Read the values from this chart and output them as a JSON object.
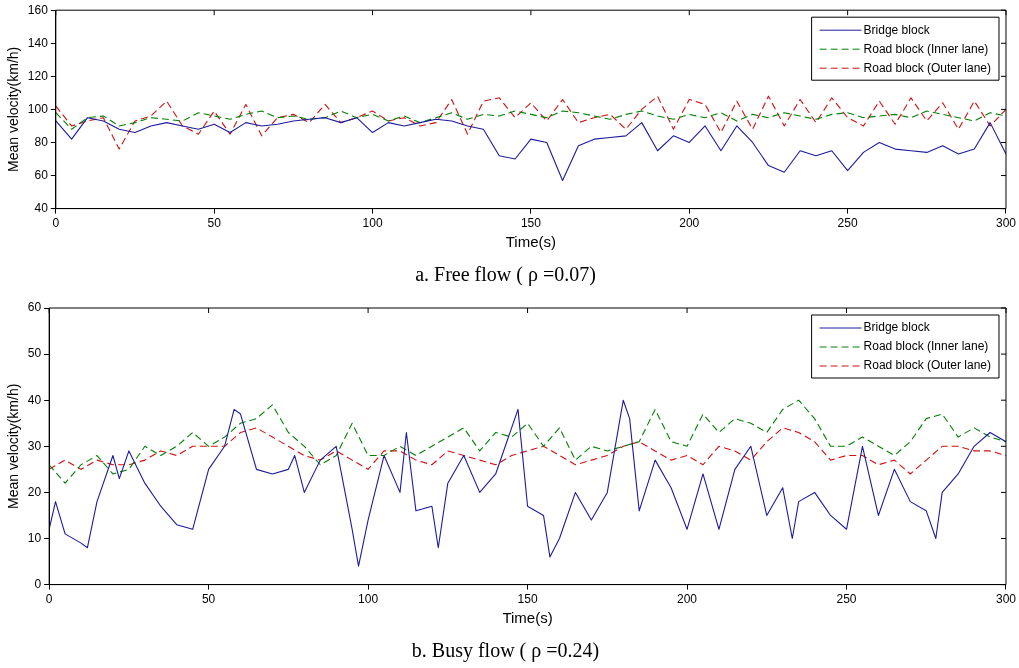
{
  "chart_data": [
    {
      "type": "line",
      "title": "a. Free flow ( ρ =0.07)",
      "xlabel": "Time(s)",
      "ylabel": "Mean velocity(km/h)",
      "xlim": [
        0,
        300
      ],
      "xticks": [
        0,
        50,
        100,
        150,
        200,
        250,
        300
      ],
      "ylim": [
        40,
        160
      ],
      "yticks": [
        40,
        60,
        80,
        100,
        120,
        140,
        160
      ],
      "grid": false,
      "legend": "top right",
      "marker": "none",
      "series": [
        {
          "name": "Bridge block",
          "color": "#1c1c9c",
          "line_style": "solid",
          "x": [
            0,
            5,
            10,
            15,
            20,
            25,
            30,
            35,
            40,
            45,
            50,
            55,
            60,
            65,
            70,
            75,
            80,
            85,
            90,
            95,
            100,
            105,
            110,
            115,
            120,
            125,
            130,
            135,
            140,
            145,
            150,
            155,
            160,
            165,
            170,
            175,
            180,
            185,
            190,
            195,
            200,
            205,
            210,
            215,
            220,
            225,
            230,
            235,
            240,
            245,
            250,
            255,
            260,
            265,
            270,
            275,
            280,
            285,
            290,
            295,
            300
          ],
          "values": [
            93,
            82,
            95,
            93,
            88,
            86,
            90,
            92,
            90,
            88,
            91,
            86,
            92,
            90,
            91,
            93,
            94,
            95,
            92,
            95,
            86,
            92,
            90,
            92,
            94,
            93,
            90,
            88,
            72,
            70,
            82,
            80,
            57,
            78,
            82,
            83,
            84,
            92,
            75,
            84,
            80,
            90,
            75,
            90,
            80,
            66,
            62,
            75,
            72,
            75,
            63,
            74,
            80,
            76,
            75,
            74,
            78,
            73,
            76,
            92,
            73
          ]
        },
        {
          "name": "Road block (Inner lane)",
          "color": "#008000",
          "line_style": "dashed",
          "x": [
            0,
            5,
            10,
            15,
            20,
            25,
            30,
            35,
            40,
            45,
            50,
            55,
            60,
            65,
            70,
            75,
            80,
            85,
            90,
            95,
            100,
            105,
            110,
            115,
            120,
            125,
            130,
            135,
            140,
            145,
            150,
            155,
            160,
            165,
            170,
            175,
            180,
            185,
            190,
            195,
            200,
            205,
            210,
            215,
            220,
            225,
            230,
            235,
            240,
            245,
            250,
            255,
            260,
            265,
            270,
            275,
            280,
            285,
            290,
            295,
            300
          ],
          "values": [
            98,
            88,
            95,
            96,
            90,
            92,
            95,
            94,
            93,
            98,
            96,
            94,
            97,
            99,
            95,
            96,
            94,
            95,
            99,
            95,
            97,
            93,
            96,
            92,
            95,
            98,
            94,
            97,
            96,
            99,
            97,
            95,
            99,
            98,
            96,
            94,
            97,
            99,
            96,
            94,
            97,
            95,
            98,
            93,
            97,
            95,
            98,
            96,
            94,
            97,
            98,
            95,
            96,
            97,
            95,
            99,
            97,
            95,
            93,
            98,
            96
          ]
        },
        {
          "name": "Road block (Outer lane)",
          "color": "#d01010",
          "line_style": "dashed",
          "x": [
            0,
            5,
            10,
            15,
            20,
            25,
            30,
            35,
            40,
            45,
            50,
            55,
            60,
            65,
            70,
            75,
            80,
            85,
            90,
            95,
            100,
            105,
            110,
            115,
            120,
            125,
            130,
            135,
            140,
            145,
            150,
            155,
            160,
            165,
            170,
            175,
            180,
            185,
            190,
            195,
            200,
            205,
            210,
            215,
            220,
            225,
            230,
            235,
            240,
            245,
            250,
            255,
            260,
            265,
            270,
            275,
            280,
            285,
            290,
            295,
            300
          ],
          "values": [
            102,
            90,
            93,
            95,
            76,
            93,
            96,
            105,
            90,
            85,
            99,
            85,
            103,
            84,
            95,
            97,
            92,
            103,
            92,
            95,
            99,
            93,
            95,
            90,
            92,
            106,
            85,
            105,
            107,
            95,
            104,
            93,
            106,
            92,
            95,
            97,
            88,
            100,
            108,
            88,
            106,
            103,
            86,
            105,
            88,
            108,
            90,
            106,
            92,
            107,
            95,
            90,
            105,
            91,
            107,
            93,
            104,
            88,
            105,
            90,
            100
          ]
        }
      ]
    },
    {
      "type": "line",
      "title": "b. Busy flow ( ρ =0.24)",
      "xlabel": "Time(s)",
      "ylabel": "Mean velocity(km/h)",
      "xlim": [
        0,
        300
      ],
      "xticks": [
        0,
        50,
        100,
        150,
        200,
        250,
        300
      ],
      "ylim": [
        0,
        60
      ],
      "yticks": [
        0,
        10,
        20,
        30,
        40,
        50,
        60
      ],
      "grid": false,
      "legend": "top right",
      "marker": "none",
      "series": [
        {
          "name": "Bridge block",
          "color": "#1c1c9c",
          "line_style": "solid",
          "x": [
            0,
            2,
            5,
            10,
            12,
            15,
            20,
            22,
            25,
            30,
            35,
            40,
            45,
            50,
            55,
            58,
            60,
            65,
            70,
            75,
            77,
            80,
            85,
            90,
            95,
            97,
            100,
            105,
            110,
            112,
            115,
            120,
            122,
            125,
            130,
            135,
            140,
            145,
            147,
            150,
            155,
            157,
            160,
            165,
            170,
            175,
            180,
            182,
            185,
            190,
            195,
            200,
            205,
            210,
            215,
            220,
            225,
            230,
            233,
            235,
            240,
            245,
            250,
            255,
            260,
            265,
            270,
            275,
            278,
            280,
            285,
            290,
            295,
            300
          ],
          "values": [
            12,
            18,
            11,
            9,
            8,
            18,
            28,
            23,
            29,
            22,
            17,
            13,
            12,
            25,
            30,
            38,
            37,
            25,
            24,
            25,
            28,
            20,
            27,
            30,
            12,
            4,
            14,
            28,
            20,
            33,
            16,
            17,
            8,
            22,
            28,
            20,
            24,
            34,
            38,
            17,
            15,
            6,
            10,
            20,
            14,
            20,
            40,
            36,
            16,
            27,
            21,
            12,
            24,
            12,
            25,
            30,
            15,
            21,
            10,
            18,
            20,
            15,
            12,
            30,
            15,
            25,
            18,
            16,
            10,
            20,
            24,
            30,
            33,
            31
          ]
        },
        {
          "name": "Road block (Inner lane)",
          "color": "#008000",
          "line_style": "dashed",
          "x": [
            0,
            5,
            10,
            15,
            20,
            25,
            30,
            35,
            40,
            45,
            50,
            55,
            60,
            65,
            70,
            75,
            80,
            85,
            90,
            95,
            100,
            105,
            110,
            115,
            120,
            125,
            130,
            135,
            140,
            145,
            150,
            155,
            160,
            165,
            170,
            175,
            180,
            185,
            190,
            195,
            200,
            205,
            210,
            215,
            220,
            225,
            230,
            235,
            240,
            245,
            250,
            255,
            260,
            265,
            270,
            275,
            280,
            285,
            290,
            295,
            300
          ],
          "values": [
            26,
            22,
            26,
            28,
            24,
            25,
            30,
            28,
            30,
            33,
            30,
            32,
            35,
            36,
            39,
            33,
            30,
            26,
            28,
            35,
            28,
            28,
            30,
            28,
            30,
            32,
            34,
            29,
            33,
            32,
            35,
            30,
            34,
            27,
            30,
            29,
            30,
            31,
            38,
            31,
            30,
            37,
            33,
            36,
            35,
            33,
            38,
            40,
            36,
            30,
            30,
            32,
            30,
            28,
            31,
            36,
            37,
            32,
            34,
            32,
            31
          ]
        },
        {
          "name": "Road block (Outer lane)",
          "color": "#d01010",
          "line_style": "dashed",
          "x": [
            0,
            5,
            10,
            15,
            20,
            25,
            30,
            35,
            40,
            45,
            50,
            55,
            60,
            65,
            70,
            75,
            80,
            85,
            90,
            95,
            100,
            105,
            110,
            115,
            120,
            125,
            130,
            135,
            140,
            145,
            150,
            155,
            160,
            165,
            170,
            175,
            180,
            185,
            190,
            195,
            200,
            205,
            210,
            215,
            220,
            225,
            230,
            235,
            240,
            245,
            250,
            255,
            260,
            265,
            270,
            275,
            280,
            285,
            290,
            295,
            300
          ],
          "values": [
            25,
            27,
            25,
            27,
            26,
            26,
            27,
            29,
            28,
            30,
            30,
            30,
            33,
            34,
            32,
            30,
            28,
            27,
            29,
            27,
            25,
            29,
            29,
            27,
            26,
            29,
            28,
            27,
            26,
            28,
            29,
            30,
            28,
            26,
            27,
            28,
            30,
            31,
            29,
            27,
            28,
            26,
            30,
            29,
            27,
            31,
            34,
            33,
            31,
            27,
            28,
            28,
            26,
            27,
            24,
            27,
            30,
            30,
            29,
            29,
            28
          ]
        }
      ]
    }
  ]
}
